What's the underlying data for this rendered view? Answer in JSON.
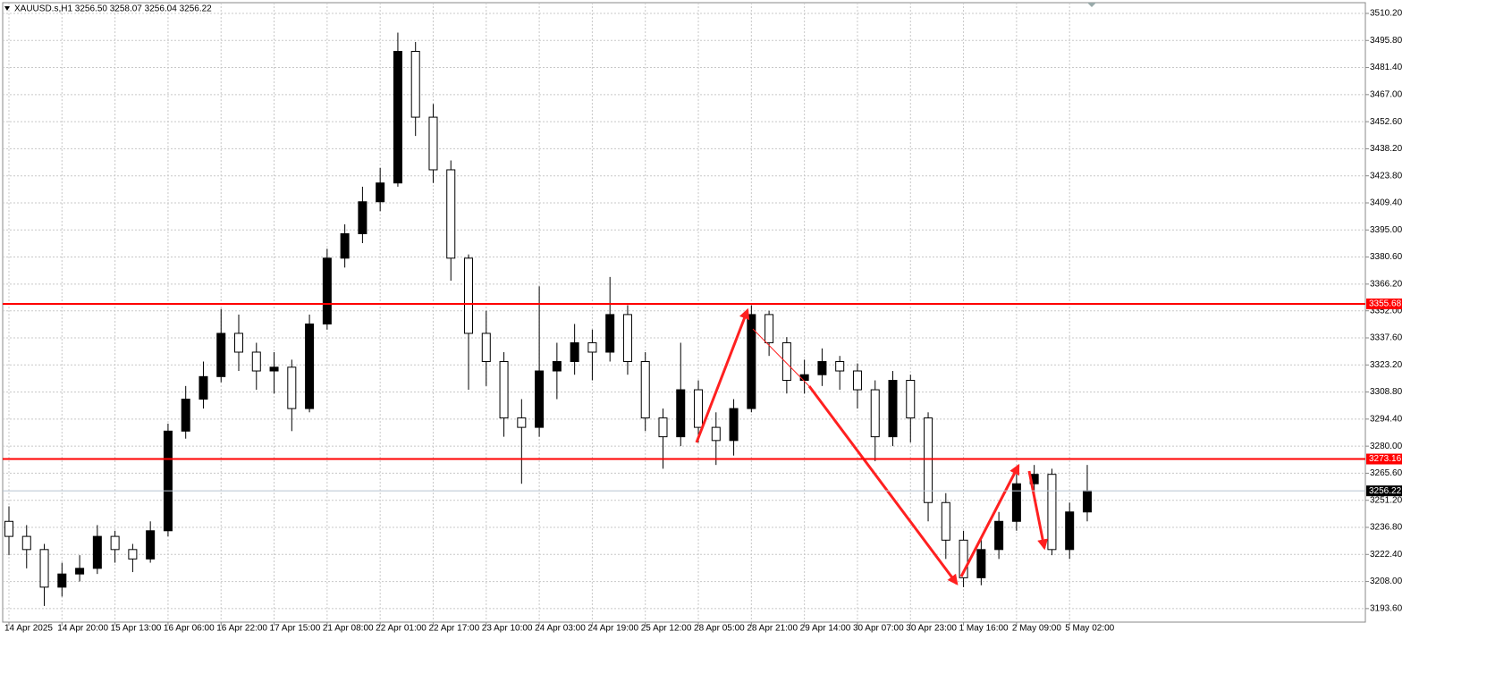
{
  "chart_data": {
    "type": "candlestick",
    "title": "XAUUSD.s,H1  3256.50 3258.07 3256.04 3256.22",
    "categories": [
      "14 Apr 2025",
      null,
      null,
      "14 Apr 20:00",
      null,
      null,
      "15 Apr 13:00",
      null,
      null,
      "16 Apr 06:00",
      null,
      null,
      "16 Apr 22:00",
      null,
      null,
      "17 Apr 15:00",
      null,
      null,
      "21 Apr 08:00",
      null,
      null,
      "22 Apr 01:00",
      null,
      null,
      "22 Apr 17:00",
      null,
      null,
      "23 Apr 10:00",
      null,
      null,
      "24 Apr 03:00",
      null,
      null,
      "24 Apr 19:00",
      null,
      null,
      "25 Apr 12:00",
      null,
      null,
      "28 Apr 05:00",
      null,
      null,
      "28 Apr 21:00",
      null,
      null,
      "29 Apr 14:00",
      null,
      null,
      "30 Apr 07:00",
      null,
      null,
      "30 Apr 23:00",
      null,
      null,
      "1 May 16:00",
      null,
      null,
      "2 May 09:00",
      null,
      null,
      "5 May 02:00",
      null
    ],
    "open": [
      3240,
      3232,
      3225,
      3205,
      3212,
      3215,
      3232,
      3225,
      3220,
      3235,
      3288,
      3305,
      3317,
      3340,
      3330,
      3320,
      3322,
      3300,
      3345,
      3380,
      3393,
      3410,
      3420,
      3490,
      3455,
      3427,
      3380,
      3340,
      3325,
      3295,
      3290,
      3320,
      3325,
      3335,
      3330,
      3350,
      3325,
      3295,
      3285,
      3310,
      3290,
      3283,
      3300,
      3350,
      3335,
      3315,
      3318,
      3325,
      3320,
      3310,
      3285,
      3315,
      3295,
      3250,
      3230,
      3210,
      3225,
      3240,
      3260,
      3265,
      3225,
      3245
    ],
    "high": [
      3248,
      3238,
      3228,
      3218,
      3222,
      3238,
      3235,
      3228,
      3240,
      3292,
      3312,
      3325,
      3353,
      3350,
      3335,
      3330,
      3326,
      3350,
      3385,
      3398,
      3418,
      3428,
      3500,
      3495,
      3462,
      3432,
      3382,
      3352,
      3330,
      3305,
      3365,
      3335,
      3345,
      3342,
      3370,
      3355,
      3330,
      3300,
      3335,
      3315,
      3298,
      3305,
      3355,
      3352,
      3338,
      3326,
      3332,
      3328,
      3324,
      3315,
      3320,
      3318,
      3298,
      3255,
      3235,
      3232,
      3245,
      3265,
      3270,
      3268,
      3250,
      3270
    ],
    "low": [
      3222,
      3215,
      3195,
      3200,
      3208,
      3212,
      3218,
      3213,
      3218,
      3232,
      3284,
      3300,
      3314,
      3320,
      3310,
      3308,
      3288,
      3298,
      3342,
      3375,
      3388,
      3405,
      3418,
      3445,
      3420,
      3368,
      3310,
      3312,
      3285,
      3260,
      3285,
      3305,
      3318,
      3315,
      3325,
      3318,
      3288,
      3268,
      3280,
      3282,
      3270,
      3275,
      3298,
      3328,
      3308,
      3308,
      3312,
      3310,
      3300,
      3272,
      3280,
      3282,
      3240,
      3220,
      3205,
      3206,
      3220,
      3235,
      3255,
      3222,
      3220,
      3240
    ],
    "close": [
      3232,
      3225,
      3205,
      3212,
      3215,
      3232,
      3225,
      3220,
      3235,
      3288,
      3305,
      3317,
      3340,
      3330,
      3320,
      3322,
      3300,
      3345,
      3380,
      3393,
      3410,
      3420,
      3490,
      3455,
      3427,
      3380,
      3340,
      3325,
      3295,
      3290,
      3320,
      3325,
      3335,
      3330,
      3350,
      3325,
      3295,
      3285,
      3310,
      3290,
      3283,
      3300,
      3350,
      3335,
      3315,
      3318,
      3325,
      3320,
      3310,
      3285,
      3315,
      3295,
      3250,
      3230,
      3210,
      3225,
      3240,
      3260,
      3265,
      3225,
      3245,
      3256.22
    ],
    "up_color": "#000000",
    "down_color": "#ffffff",
    "ylim": [
      3186.4,
      3515.9
    ],
    "yticks": [
      {
        "value": 3510.2,
        "label": "3510.20"
      },
      {
        "value": 3495.8,
        "label": "3495.80"
      },
      {
        "value": 3481.4,
        "label": "3481.40"
      },
      {
        "value": 3467,
        "label": "3467.00"
      },
      {
        "value": 3452.6,
        "label": "3452.60"
      },
      {
        "value": 3438.2,
        "label": "3438.20"
      },
      {
        "value": 3423.8,
        "label": "3423.80"
      },
      {
        "value": 3409.4,
        "label": "3409.40"
      },
      {
        "value": 3395,
        "label": "3395.00"
      },
      {
        "value": 3380.6,
        "label": "3380.60"
      },
      {
        "value": 3366.2,
        "label": "3366.20"
      },
      {
        "value": 3352,
        "label": "3352.00"
      },
      {
        "value": 3337.6,
        "label": "3337.60"
      },
      {
        "value": 3323.2,
        "label": "3323.20"
      },
      {
        "value": 3308.8,
        "label": "3308.80"
      },
      {
        "value": 3294.4,
        "label": "3294.40"
      },
      {
        "value": 3280,
        "label": "3280.00"
      },
      {
        "value": 3265.6,
        "label": "3265.60"
      },
      {
        "value": 3251.2,
        "label": "3251.20"
      },
      {
        "value": 3236.8,
        "label": "3236.80"
      },
      {
        "value": 3222.4,
        "label": "3222.40"
      },
      {
        "value": 3208,
        "label": "3208.00"
      },
      {
        "value": 3193.6,
        "label": "3193.60"
      }
    ],
    "grid": true,
    "levels": [
      {
        "value": 3355.68,
        "label": "3355.68",
        "color": "#ff0000"
      },
      {
        "value": 3273.16,
        "label": "3273.16",
        "color": "#ff0000"
      },
      {
        "value": 3256.22,
        "label": "3256.22",
        "color": "#b8c4d0"
      }
    ]
  }
}
